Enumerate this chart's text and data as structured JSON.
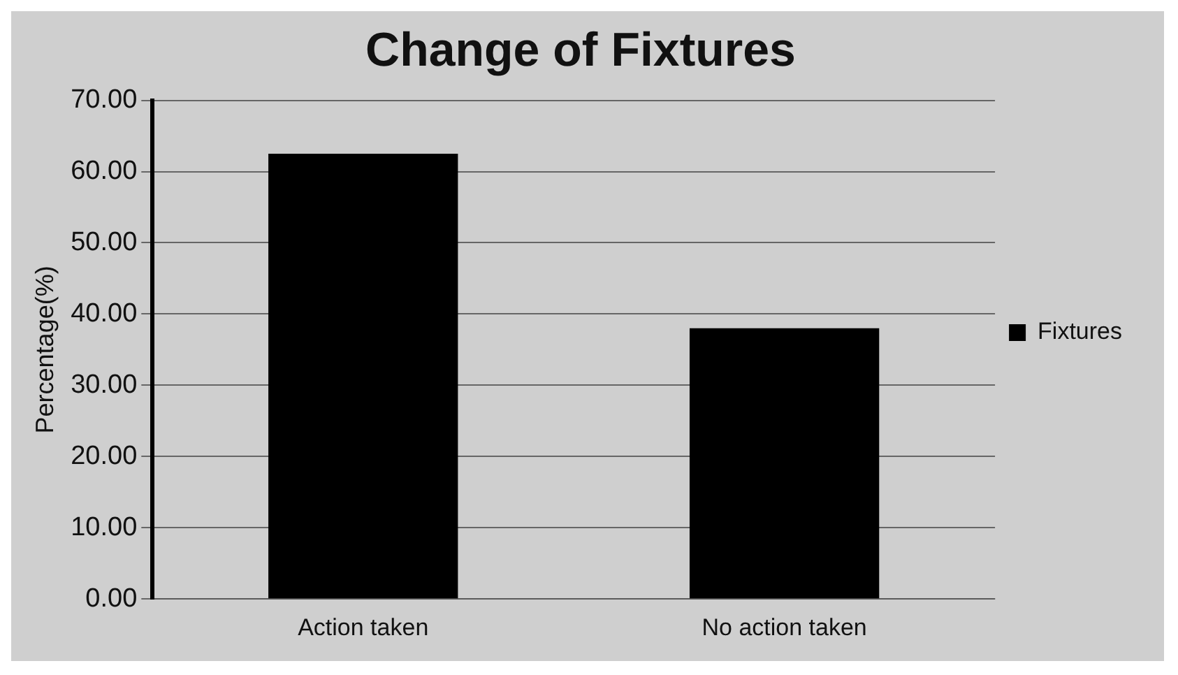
{
  "chart_data": {
    "type": "bar",
    "title": "Change of Fixtures",
    "ylabel": "Percentage(%)",
    "categories": [
      "Action taken",
      "No action taken"
    ],
    "series": [
      {
        "name": "Fixtures",
        "color": "#000000",
        "values": [
          62.5,
          38
        ]
      }
    ],
    "ylim": [
      0,
      70
    ],
    "yticks": [
      {
        "value": 0,
        "label": "0.00"
      },
      {
        "value": 10,
        "label": "10.00"
      },
      {
        "value": 20,
        "label": "20.00"
      },
      {
        "value": 30,
        "label": "30.00"
      },
      {
        "value": 40,
        "label": "40.00"
      },
      {
        "value": 50,
        "label": "50.00"
      },
      {
        "value": 60,
        "label": "60.00"
      },
      {
        "value": 70,
        "label": "70.00"
      }
    ],
    "grid": "y",
    "legend": "right"
  }
}
